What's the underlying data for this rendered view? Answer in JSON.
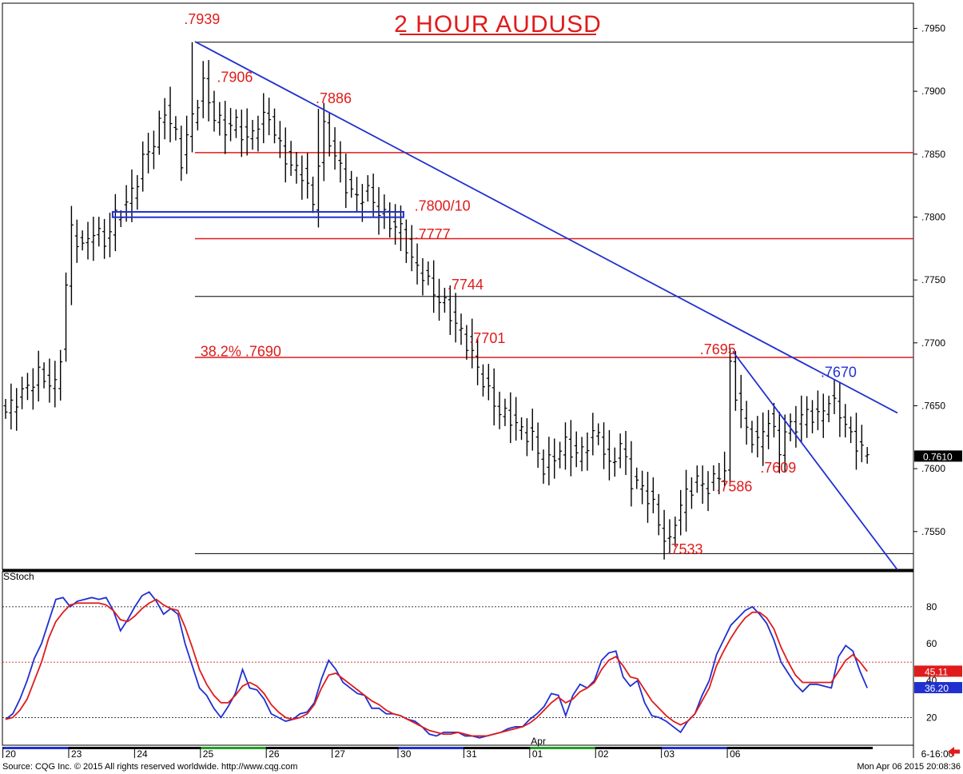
{
  "chart_data": {
    "type": "ohlc",
    "title": "2 HOUR AUDUSD",
    "instrument": "AUDUSD",
    "timeframe": "2 hour",
    "price_axis": {
      "min": 0.752,
      "max": 0.797,
      "ticks": [
        ".7950",
        ".7900",
        ".7850",
        ".7800",
        ".7750",
        ".7700",
        ".7650",
        ".7600",
        ".7550"
      ],
      "tick_values": [
        0.795,
        0.79,
        0.785,
        0.78,
        0.775,
        0.77,
        0.765,
        0.76,
        0.755
      ]
    },
    "last_price": {
      "value": 0.761,
      "label": "0.7610",
      "bg": "#000000",
      "fg": "#ffffff"
    },
    "x_axis": {
      "count": 164,
      "ticks": [
        {
          "label": "20",
          "i": 0
        },
        {
          "label": "23",
          "i": 12
        },
        {
          "label": "24",
          "i": 24
        },
        {
          "label": "25",
          "i": 36
        },
        {
          "label": "26",
          "i": 48
        },
        {
          "label": "27",
          "i": 60
        },
        {
          "label": "30",
          "i": 72
        },
        {
          "label": "31",
          "i": 84
        },
        {
          "label": "01",
          "i": 96
        },
        {
          "label": "02",
          "i": 108
        },
        {
          "label": "03",
          "i": 120
        },
        {
          "label": "06",
          "i": 132
        }
      ],
      "month_label": {
        "text": "Apr",
        "i": 96
      },
      "current_label": "6-16:00"
    },
    "swing_points": [
      {
        "i": 34.5,
        "price": 0.7939,
        "label": ".7939"
      },
      {
        "i": 57.5,
        "price": 0.7886,
        "label": ".7886"
      },
      {
        "i": 132.5,
        "price": 0.7695,
        "label": ".7695"
      },
      {
        "i": 121.5,
        "price": 0.7533,
        "label": ".7533"
      }
    ],
    "bars": [],
    "horizontal_levels": [
      {
        "price": 0.7939,
        "color": "#000000",
        "from_i": 34.5
      },
      {
        "price": 0.78512,
        "color": "#e01b1b",
        "from_i": 34.5
      },
      {
        "price": 0.77828,
        "color": "#e01b1b",
        "from_i": 34.5
      },
      {
        "price": 0.77369,
        "color": "#000000",
        "from_i": 34.5
      },
      {
        "price": 0.76884,
        "color": "#e01b1b",
        "from_i": 34.5
      },
      {
        "price": 0.75325,
        "color": "#000000",
        "from_i": 34.5
      }
    ],
    "zone": {
      "price_top": 0.78035,
      "price_bottom": 0.78005,
      "from_i": 19.5,
      "to_i": 72.5,
      "color": "#2030d0"
    },
    "trendlines": [
      {
        "from_i": 34.5,
        "from_price": 0.79395,
        "to_i": 162.5,
        "to_price": 0.76443,
        "color": "#2030d0"
      },
      {
        "from_i": 132.5,
        "from_price": 0.76932,
        "to_i": 162.5,
        "to_price": 0.75196,
        "color": "#2030d0"
      }
    ],
    "annotations": [
      {
        "text": ".7939",
        "i": 32.5,
        "price": 0.79535,
        "color": "#e01b1b"
      },
      {
        "text": ".7906",
        "i": 38.5,
        "price": 0.79075,
        "color": "#e01b1b"
      },
      {
        "text": ".7886",
        "i": 56.5,
        "price": 0.78905,
        "color": "#e01b1b"
      },
      {
        "text": ".7800/10",
        "i": 74.5,
        "price": 0.7805,
        "color": "#e01b1b"
      },
      {
        "text": ".7777",
        "i": 74.5,
        "price": 0.77825,
        "color": "#e01b1b"
      },
      {
        "text": ".7744",
        "i": 80.5,
        "price": 0.77425,
        "color": "#e01b1b"
      },
      {
        "text": ".7701",
        "i": 84.5,
        "price": 0.77,
        "color": "#e01b1b"
      },
      {
        "text": "38.2%   .7690",
        "i": 35.5,
        "price": 0.76895,
        "color": "#e01b1b"
      },
      {
        "text": ".7695",
        "i": 126.5,
        "price": 0.7691,
        "color": "#e01b1b"
      },
      {
        "text": ".7670",
        "i": 148.5,
        "price": 0.7673,
        "color": "#2030d0"
      },
      {
        "text": ".7609",
        "i": 137.5,
        "price": 0.7597,
        "color": "#e01b1b"
      },
      {
        "text": ".7586",
        "i": 129.5,
        "price": 0.7582,
        "color": "#e01b1b"
      },
      {
        "text": ".7533",
        "i": 120.5,
        "price": 0.7532,
        "color": "#e01b1b"
      }
    ],
    "stochastic": {
      "label": "SStoch",
      "ylim": [
        5,
        99
      ],
      "y_ticks": [
        "80",
        "60",
        "40",
        "20"
      ],
      "y_tick_values": [
        80,
        60,
        40,
        20
      ],
      "reference_lines": [
        80,
        50,
        20
      ],
      "series": [
        {
          "color": "#2030d0",
          "value": 36.2,
          "label": "36.20",
          "values": [
            19,
            22,
            30,
            40,
            52,
            60,
            72,
            84,
            85,
            80,
            83,
            84,
            85,
            84,
            85,
            78,
            67,
            73,
            80,
            86,
            88,
            83,
            76,
            79,
            76,
            60,
            48,
            36,
            32,
            25,
            20,
            26,
            33,
            46,
            36,
            35,
            30,
            22,
            20,
            18,
            19,
            22,
            23,
            28,
            41,
            51,
            46,
            39,
            36,
            33,
            32,
            25,
            25,
            22,
            22,
            21,
            19,
            18,
            15,
            11,
            10,
            12,
            12,
            12,
            10,
            10,
            9,
            10,
            11,
            12,
            14,
            15,
            15,
            19,
            22,
            26,
            33,
            32,
            21,
            32,
            38,
            36,
            40,
            51,
            55,
            56,
            42,
            37,
            40,
            28,
            21,
            20,
            18,
            15,
            12,
            18,
            22,
            32,
            40,
            54,
            62,
            70,
            74,
            78,
            80,
            76,
            71,
            62,
            50,
            44,
            38,
            34,
            38,
            38,
            37,
            36,
            53,
            59,
            56,
            45,
            36
          ]
        },
        {
          "color": "#e01b1b",
          "value": 45.11,
          "label": "45.11",
          "values": [
            19,
            20,
            24,
            30,
            40,
            50,
            63,
            72,
            77,
            81,
            82,
            82,
            82,
            82,
            81,
            78,
            73,
            72,
            75,
            79,
            82,
            84,
            81,
            79,
            78,
            69,
            58,
            46,
            38,
            32,
            28,
            28,
            32,
            37,
            39,
            37,
            33,
            27,
            23,
            20,
            19,
            20,
            22,
            27,
            36,
            43,
            44,
            41,
            38,
            35,
            32,
            29,
            27,
            24,
            22,
            21,
            19,
            17,
            15,
            13,
            12,
            11,
            11,
            12,
            11,
            10,
            10,
            10,
            11,
            12,
            13,
            14,
            15,
            17,
            20,
            24,
            28,
            31,
            28,
            30,
            34,
            36,
            39,
            46,
            51,
            53,
            48,
            42,
            41,
            35,
            29,
            25,
            21,
            18,
            16,
            18,
            22,
            29,
            36,
            48,
            56,
            63,
            69,
            74,
            77,
            77,
            74,
            68,
            58,
            50,
            43,
            39,
            39,
            39,
            39,
            39,
            45,
            51,
            54,
            50,
            45
          ]
        }
      ]
    },
    "colors": {
      "bars": "#000000",
      "support_resistance": "#e01b1b",
      "trendline": "#2030d0",
      "title": "#e01b1b"
    }
  },
  "footer": {
    "source": "Source: CQG Inc. © 2015 All rights reserved worldwide. http://www.cqg.com",
    "timestamp": "Mon Apr 06 2015 20:08:36"
  }
}
